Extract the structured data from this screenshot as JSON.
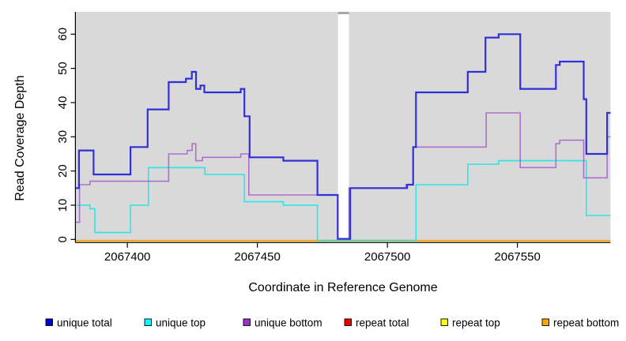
{
  "figure": {
    "background": "#FFFFFF",
    "panel_color": "#D9D9D9",
    "gap_band_color": "#FFFFFF",
    "gap_cap_color": "#A6A6A6",
    "axis_color": "#000000"
  },
  "chart_data": {
    "type": "line",
    "subtype": "step",
    "title": "",
    "xlabel": "Coordinate in Reference Genome",
    "ylabel": "Read Coverage Depth",
    "x_ticks": [
      2067400,
      2067450,
      2067500,
      2067550
    ],
    "y_ticks": [
      0,
      10,
      20,
      30,
      40,
      50,
      60
    ],
    "x_range": [
      2067380.2,
      2067585.8
    ],
    "ylim": [
      0,
      60
    ],
    "grid": false,
    "legend_position": "bottom",
    "gap_region": [
      2067481.0,
      2067485.2
    ],
    "series": [
      {
        "name": "unique total",
        "line_color": "#3030D9",
        "legend_color": "#0000DD",
        "line_width": 2.2,
        "points": [
          [
            2067380.2,
            15
          ],
          [
            2067381.4,
            26
          ],
          [
            2067387.0,
            19
          ],
          [
            2067401.2,
            27
          ],
          [
            2067407.8,
            38
          ],
          [
            2067415.9,
            46
          ],
          [
            2067422.5,
            47
          ],
          [
            2067424.8,
            49
          ],
          [
            2067426.4,
            44
          ],
          [
            2067428.1,
            45
          ],
          [
            2067429.6,
            43
          ],
          [
            2067443.6,
            44
          ],
          [
            2067445.0,
            36
          ],
          [
            2067447.0,
            24
          ],
          [
            2067460.0,
            23
          ],
          [
            2067473.1,
            13
          ],
          [
            2067480.9,
            0
          ],
          [
            2067485.7,
            15
          ],
          [
            2067507.6,
            16
          ],
          [
            2067509.9,
            27
          ],
          [
            2067511.0,
            43
          ],
          [
            2067530.9,
            49
          ],
          [
            2067537.7,
            59
          ],
          [
            2067542.8,
            60
          ],
          [
            2067551.1,
            44
          ],
          [
            2067564.8,
            51
          ],
          [
            2067566.3,
            52
          ],
          [
            2067575.5,
            41
          ],
          [
            2067576.5,
            25
          ],
          [
            2067584.5,
            37
          ]
        ]
      },
      {
        "name": "unique top",
        "line_color": "rgba(0,232,232,0.8)",
        "legend_color": "#00FFFF",
        "line_width": 1.6,
        "points": [
          [
            2067380.2,
            10
          ],
          [
            2067385.6,
            9
          ],
          [
            2067387.5,
            2
          ],
          [
            2067401.2,
            10
          ],
          [
            2067408.1,
            21
          ],
          [
            2067429.8,
            19
          ],
          [
            2067445.0,
            11
          ],
          [
            2067460.0,
            10
          ],
          [
            2067473.1,
            0
          ],
          [
            2067511.0,
            16
          ],
          [
            2067530.9,
            22
          ],
          [
            2067542.8,
            23
          ],
          [
            2067576.5,
            7
          ]
        ]
      },
      {
        "name": "unique bottom",
        "line_color": "rgba(155,70,200,0.72)",
        "legend_color": "#9933CC",
        "line_width": 1.6,
        "points": [
          [
            2067380.2,
            5
          ],
          [
            2067381.6,
            16
          ],
          [
            2067385.6,
            17
          ],
          [
            2067415.9,
            25
          ],
          [
            2067423.0,
            26
          ],
          [
            2067424.9,
            28
          ],
          [
            2067426.3,
            23
          ],
          [
            2067428.9,
            24
          ],
          [
            2067443.6,
            25
          ],
          [
            2067446.7,
            13
          ],
          [
            2067480.9,
            0
          ],
          [
            2067485.2,
            15
          ],
          [
            2067507.1,
            16
          ],
          [
            2067509.9,
            27
          ],
          [
            2067538.0,
            37
          ],
          [
            2067551.1,
            21
          ],
          [
            2067564.8,
            28
          ],
          [
            2067566.3,
            29
          ],
          [
            2067575.5,
            18
          ],
          [
            2067584.5,
            30
          ]
        ]
      },
      {
        "name": "repeat total",
        "line_color": "#DD0000",
        "legend_color": "#EE0000",
        "line_width": 1.4,
        "points": [
          [
            2067380.2,
            0
          ]
        ]
      },
      {
        "name": "repeat top",
        "line_color": "#FFFF00",
        "legend_color": "#FFFF00",
        "line_width": 1.4,
        "points": [
          [
            2067380.2,
            0
          ]
        ]
      },
      {
        "name": "repeat bottom",
        "line_color": "#FFA500",
        "legend_color": "#FFA500",
        "line_width": 1.8,
        "points": [
          [
            2067380.2,
            0
          ]
        ]
      }
    ]
  }
}
